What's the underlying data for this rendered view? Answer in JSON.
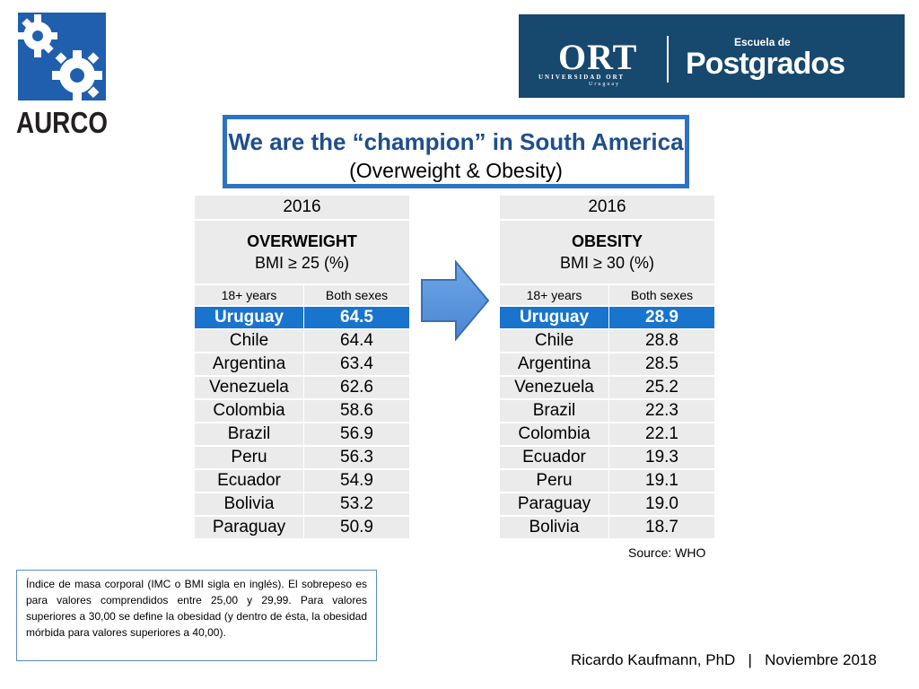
{
  "logos": {
    "aurco_text": "AURCO",
    "ort_word": "ORT",
    "ort_university": "UNIVERSIDAD ORT",
    "ort_country": "Uruguay",
    "escuela": "Escuela de",
    "postgrados": "Postgrados"
  },
  "title": {
    "line1": "We are the “champion” in South America",
    "line2": "(Overweight & Obesity)"
  },
  "overweight": {
    "year": "2016",
    "heading": "OVERWEIGHT",
    "criteria": "BMI ≥ 25 (%)",
    "age": "18+  years",
    "sexes": "Both sexes",
    "rows": [
      {
        "country": "Uruguay",
        "value": "64.5"
      },
      {
        "country": "Chile",
        "value": "64.4"
      },
      {
        "country": "Argentina",
        "value": "63.4"
      },
      {
        "country": "Venezuela",
        "value": "62.6"
      },
      {
        "country": "Colombia",
        "value": "58.6"
      },
      {
        "country": "Brazil",
        "value": "56.9"
      },
      {
        "country": "Peru",
        "value": "56.3"
      },
      {
        "country": "Ecuador",
        "value": "54.9"
      },
      {
        "country": "Bolivia",
        "value": "53.2"
      },
      {
        "country": "Paraguay",
        "value": "50.9"
      }
    ]
  },
  "obesity": {
    "year": "2016",
    "heading": "OBESITY",
    "criteria": "BMI ≥ 30 (%)",
    "age": "18+  years",
    "sexes": "Both sexes",
    "rows": [
      {
        "country": "Uruguay",
        "value": "28.9"
      },
      {
        "country": "Chile",
        "value": "28.8"
      },
      {
        "country": "Argentina",
        "value": "28.5"
      },
      {
        "country": "Venezuela",
        "value": "25.2"
      },
      {
        "country": "Brazil",
        "value": "22.3"
      },
      {
        "country": "Colombia",
        "value": "22.1"
      },
      {
        "country": "Ecuador",
        "value": "19.3"
      },
      {
        "country": "Peru",
        "value": "19.1"
      },
      {
        "country": "Paraguay",
        "value": "19.0"
      },
      {
        "country": "Bolivia",
        "value": "18.7"
      }
    ]
  },
  "source": "Source: WHO",
  "note": "Índice de masa corporal (IMC o BMI sigla en inglés). El sobrepeso es para valores comprendidos entre 25,00 y 29,99. Para valores superiores a 30,00 se define la obesidad (y dentro de ésta, la obesidad mórbida para valores superiores a 40,00).",
  "footer": "Ricardo Kaufmann, PhD   |   Noviembre 2018",
  "colors": {
    "highlight": "#1874cd",
    "title_blue": "#1f4e8c",
    "box_border": "#2d73c5",
    "cell_bg": "#ebebeb",
    "ort_bg": "#17486e"
  }
}
